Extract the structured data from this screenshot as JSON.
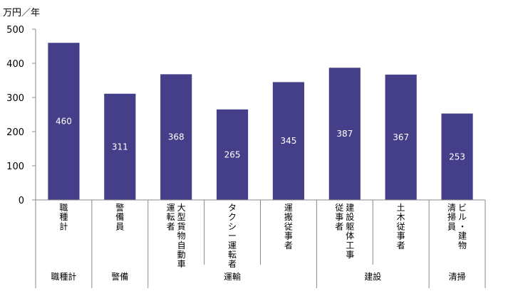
{
  "chart_data": {
    "type": "bar",
    "unit_label": "万円／年",
    "ylim": [
      0,
      500
    ],
    "yticks": [
      0,
      100,
      200,
      300,
      400,
      500
    ],
    "grid": false,
    "legend": "none",
    "bar_color": "#453F8A",
    "categories": [
      {
        "lines": [
          "職種計"
        ]
      },
      {
        "lines": [
          "警備員"
        ]
      },
      {
        "lines": [
          "大型貨物自動車",
          "運転者"
        ]
      },
      {
        "lines": [
          "タクシー運転者"
        ]
      },
      {
        "lines": [
          "運搬従事者"
        ]
      },
      {
        "lines": [
          "建設躯体工事",
          "従事者"
        ]
      },
      {
        "lines": [
          "土木従事者"
        ]
      },
      {
        "lines": [
          "ビル・建物",
          "清掃員"
        ]
      }
    ],
    "values": [
      460,
      311,
      368,
      265,
      345,
      387,
      367,
      253
    ],
    "data_labels": [
      "460",
      "311",
      "368",
      "265",
      "345",
      "387",
      "367",
      "253"
    ],
    "groups": [
      {
        "label": "職種計",
        "start": 0,
        "end": 0
      },
      {
        "label": "警備",
        "start": 1,
        "end": 1
      },
      {
        "label": "運輸",
        "start": 2,
        "end": 4
      },
      {
        "label": "建設",
        "start": 5,
        "end": 6
      },
      {
        "label": "清掃",
        "start": 7,
        "end": 7
      }
    ]
  }
}
